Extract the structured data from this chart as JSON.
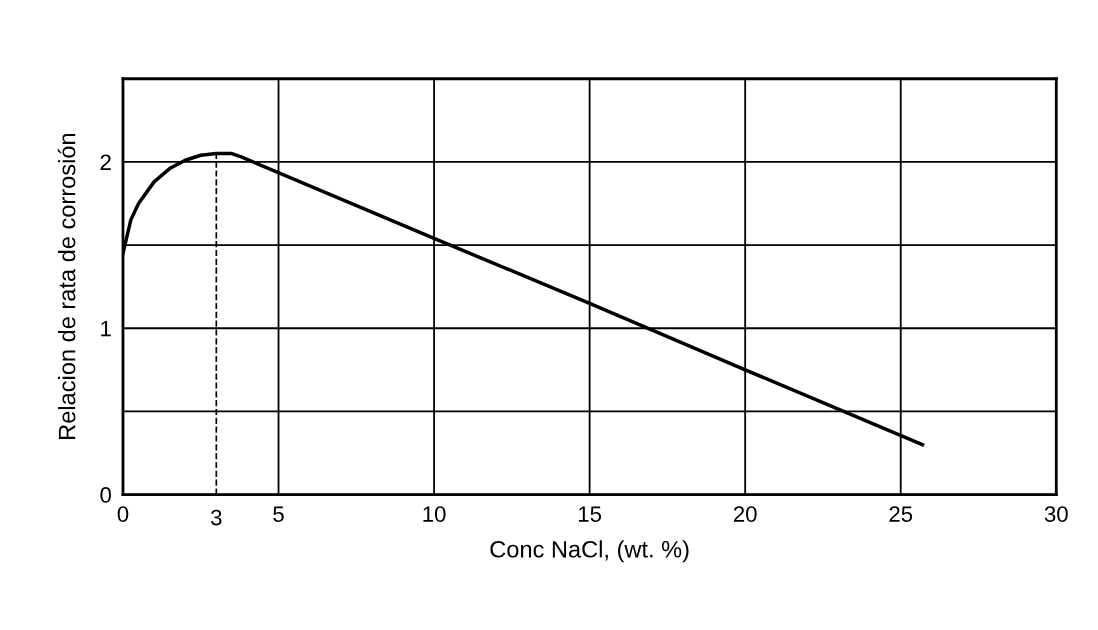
{
  "chart_data": {
    "type": "line",
    "xlabel": "Conc NaCl, (wt. %)",
    "ylabel": "Relacion de rata de corrosión",
    "x": [
      0,
      0.25,
      0.5,
      1,
      1.5,
      2,
      2.5,
      3,
      3.5,
      3.8,
      10,
      15,
      20,
      25.7
    ],
    "series": [
      {
        "color": "#000000",
        "values": [
          1.45,
          1.65,
          1.75,
          1.88,
          1.96,
          2.01,
          2.04,
          2.05,
          2.05,
          2.03,
          1.54,
          1.15,
          0.75,
          0.3
        ]
      }
    ],
    "xlim": [
      0,
      30
    ],
    "xticks": [
      0,
      5,
      10,
      15,
      20,
      25,
      30
    ],
    "ylim": [
      0,
      2.5
    ],
    "yticks": [
      0,
      {
        "value": 0.5,
        "label": null
      },
      1,
      {
        "value": 1.5,
        "label": null
      },
      2,
      {
        "value": 2.5,
        "label": null
      }
    ],
    "ref_lines": [
      {
        "axis": "x",
        "value": 3,
        "label": "3",
        "color": "#000000",
        "line_style": "dashed"
      }
    ],
    "grid": true,
    "marker": "none",
    "line_style": "solid"
  }
}
